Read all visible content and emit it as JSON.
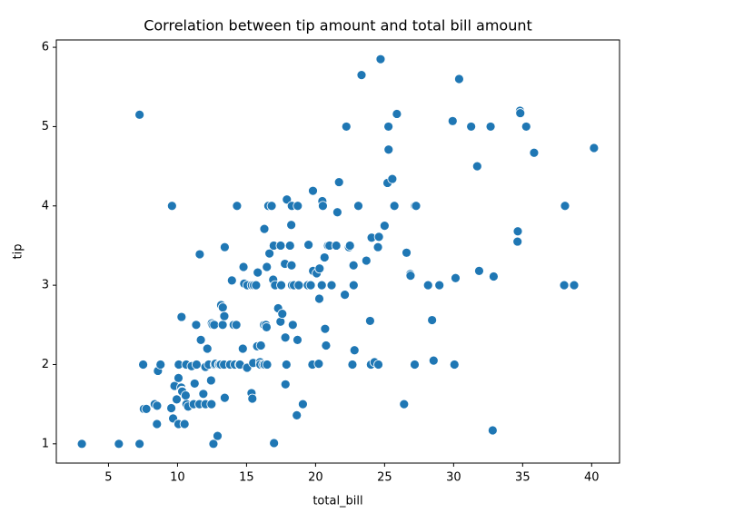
{
  "chart_data": {
    "type": "scatter",
    "title": "Correlation between tip amount and total bill amount",
    "x_label": "total_bill",
    "y_label": "tip",
    "color": "#1f77b4",
    "xlim": [
      1.22,
      42.02
    ],
    "ylim": [
      0.7575,
      6.0925
    ],
    "xticks": [
      5,
      10,
      15,
      20,
      25,
      30,
      35,
      40
    ],
    "yticks": [
      1,
      2,
      3,
      4,
      5,
      6
    ],
    "x": [
      3.07,
      5.75,
      7.25,
      7.25,
      7.51,
      7.56,
      7.74,
      8.35,
      8.51,
      8.52,
      8.58,
      8.77,
      9.55,
      9.6,
      9.68,
      9.78,
      9.94,
      10.07,
      10.09,
      10.27,
      10.29,
      10.33,
      10.34,
      10.07,
      10.59,
      10.63,
      10.65,
      10.51,
      10.77,
      11.02,
      11.17,
      11.24,
      11.35,
      11.38,
      11.59,
      11.61,
      11.69,
      11.87,
      12.02,
      12.03,
      12.16,
      12.26,
      12.43,
      12.46,
      12.48,
      12.54,
      12.6,
      12.66,
      12.69,
      12.74,
      12.9,
      13.0,
      13.03,
      13.13,
      13.16,
      13.27,
      13.28,
      13.37,
      13.39,
      13.42,
      13.42,
      13.81,
      13.94,
      14.07,
      14.15,
      14.26,
      14.31,
      14.48,
      14.52,
      14.73,
      14.78,
      14.83,
      15.04,
      15.06,
      15.36,
      15.38,
      15.42,
      15.48,
      15.53,
      15.69,
      15.77,
      15.81,
      15.98,
      16.0,
      16.04,
      16.21,
      16.27,
      16.29,
      16.31,
      16.4,
      16.45,
      16.47,
      16.49,
      16.58,
      16.66,
      16.82,
      16.93,
      16.97,
      16.99,
      17.07,
      17.29,
      17.46,
      17.47,
      17.51,
      17.59,
      17.78,
      17.81,
      17.82,
      17.89,
      17.92,
      18.15,
      18.24,
      18.26,
      18.28,
      18.29,
      18.35,
      18.43,
      18.64,
      18.69,
      18.71,
      18.78,
      19.08,
      19.44,
      19.49,
      19.65,
      19.77,
      19.81,
      19.82,
      20.08,
      20.23,
      20.27,
      20.29,
      20.45,
      20.49,
      20.53,
      20.65,
      20.69,
      20.76,
      20.9,
      21.01,
      21.16,
      21.5,
      21.58,
      21.7,
      22.12,
      22.23,
      22.42,
      22.49,
      22.67,
      22.75,
      22.76,
      22.82,
      23.1,
      23.33,
      23.68,
      23.95,
      24.01,
      24.06,
      24.27,
      24.52,
      24.55,
      24.59,
      24.71,
      25.0,
      25.21,
      25.28,
      25.29,
      25.56,
      25.71,
      25.89,
      26.41,
      26.59,
      26.86,
      26.88,
      27.18,
      27.2,
      27.28,
      28.15,
      28.44,
      28.55,
      28.97,
      29.93,
      30.06,
      30.14,
      30.4,
      31.27,
      31.71,
      31.85,
      32.68,
      32.83,
      32.9,
      34.63,
      34.65,
      34.81,
      34.83,
      35.26,
      35.83,
      38.01,
      38.07,
      38.73,
      40.17
    ],
    "values": [
      1.0,
      1.0,
      1.0,
      5.15,
      2.0,
      1.44,
      1.44,
      1.5,
      1.25,
      1.48,
      1.92,
      2.0,
      1.45,
      4.0,
      1.32,
      1.73,
      1.56,
      1.83,
      2.0,
      1.71,
      2.6,
      1.67,
      1.66,
      1.25,
      1.61,
      2.0,
      1.5,
      1.25,
      1.47,
      1.98,
      1.5,
      1.76,
      2.5,
      2.0,
      1.5,
      3.39,
      2.31,
      1.63,
      1.97,
      1.5,
      2.2,
      2.0,
      1.8,
      1.5,
      2.52,
      2.5,
      1.0,
      2.5,
      2.0,
      2.01,
      1.1,
      2.0,
      2.0,
      2.0,
      2.75,
      2.5,
      2.72,
      2.0,
      2.61,
      1.58,
      3.48,
      2.0,
      3.06,
      2.5,
      2.0,
      2.5,
      4.0,
      2.0,
      2.0,
      2.2,
      3.23,
      3.02,
      1.96,
      3.0,
      1.64,
      3.0,
      1.57,
      2.02,
      3.0,
      3.0,
      2.23,
      3.16,
      2.03,
      2.0,
      2.24,
      2.0,
      2.5,
      3.71,
      2.0,
      2.5,
      2.47,
      3.23,
      2.0,
      4.0,
      3.4,
      4.0,
      3.07,
      3.5,
      1.01,
      3.0,
      2.71,
      2.54,
      3.5,
      3.0,
      2.64,
      3.27,
      2.34,
      1.75,
      2.0,
      4.08,
      3.5,
      3.76,
      3.25,
      4.0,
      3.0,
      2.5,
      3.0,
      1.36,
      2.31,
      4.0,
      3.0,
      1.5,
      3.0,
      3.51,
      3.0,
      2.0,
      4.19,
      3.18,
      3.15,
      2.01,
      2.83,
      3.21,
      3.0,
      4.06,
      4.0,
      3.35,
      2.45,
      2.24,
      3.5,
      3.5,
      3.0,
      3.5,
      3.92,
      4.3,
      2.88,
      5.0,
      3.48,
      3.5,
      2.0,
      3.25,
      3.0,
      2.18,
      4.0,
      5.65,
      3.31,
      2.55,
      2.0,
      3.6,
      2.03,
      3.48,
      2.0,
      3.61,
      5.85,
      3.75,
      4.29,
      5.0,
      4.71,
      4.34,
      4.0,
      5.16,
      1.5,
      3.41,
      3.14,
      3.12,
      2.0,
      4.0,
      4.0,
      3.0,
      2.56,
      2.05,
      3.0,
      5.07,
      2.0,
      3.09,
      5.6,
      5.0,
      4.5,
      3.18,
      5.0,
      1.17,
      3.11,
      3.55,
      3.68,
      5.2,
      5.17,
      5.0,
      4.67,
      3.0,
      4.0,
      3.0,
      4.73
    ]
  }
}
